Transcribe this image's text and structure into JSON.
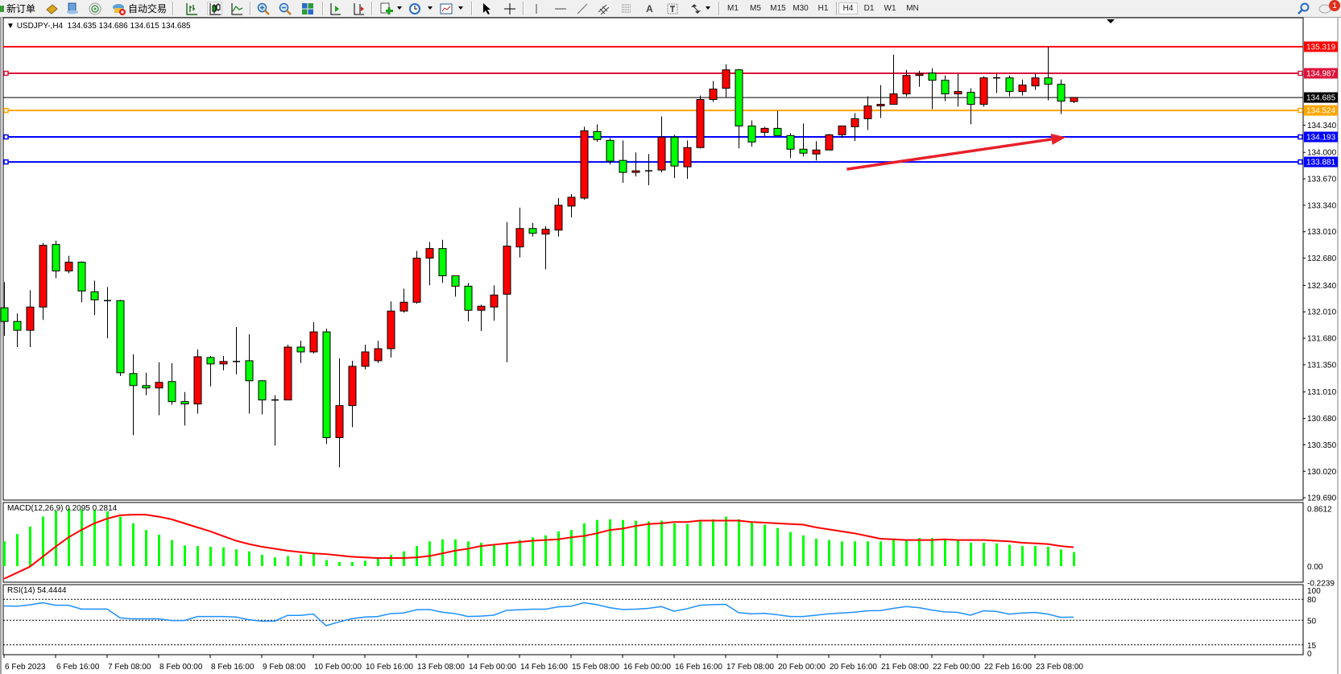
{
  "toolbar": {
    "new_order": "新订单",
    "auto_trading": "自动交易",
    "timeframes": [
      "M1",
      "M5",
      "M15",
      "M30",
      "H1",
      "H4",
      "D1",
      "W1",
      "MN"
    ],
    "active_timeframe": "H4",
    "notification_count": "1",
    "icons": [
      "new-order-icon",
      "history-center-icon",
      "options-icon",
      "signal-icon",
      "auto-trading-icon",
      "bar-chart-icon",
      "candlestick-icon",
      "line-chart-icon",
      "zoom-in-icon",
      "zoom-out-icon",
      "tile-windows-icon",
      "auto-scroll-icon",
      "chart-shift-icon",
      "indicators-icon",
      "periods-icon",
      "templates-icon",
      "cursor-icon",
      "crosshair-icon",
      "vertical-line-icon",
      "horizontal-line-icon",
      "trendline-icon",
      "equidistant-channel-icon",
      "fibonacci-icon",
      "text-icon",
      "text-label-icon",
      "arrows-icon",
      "search-icon",
      "notification-icon"
    ]
  },
  "chart": {
    "header": "USDJPY-,H4  134.635 134.686 134.615 134.685",
    "price_axis_labels": [
      "135.319",
      "134.987",
      "134.685",
      "134.524",
      "134.340",
      "134.193",
      "134.000",
      "133.881",
      "133.670",
      "133.340",
      "133.010",
      "132.680",
      "132.340",
      "132.010",
      "131.680",
      "131.350",
      "131.010",
      "130.680",
      "130.350",
      "130.020",
      "129.690"
    ],
    "macd_header": "MACD(12,26,9) 0.2095 0.2814",
    "macd_axis_labels": [
      "0.8612",
      "0.00",
      "-0.2239"
    ],
    "rsi_header": "RSI(14) 54.4444",
    "rsi_axis_labels": [
      "100",
      "80",
      "50",
      "15",
      "0"
    ],
    "x_tick_labels": [
      "6 Feb 2023",
      "6 Feb 16:00",
      "7 Feb 08:00",
      "8 Feb 00:00",
      "8 Feb 16:00",
      "9 Feb 08:00",
      "10 Feb 00:00",
      "10 Feb 16:00",
      "13 Feb 08:00",
      "14 Feb 00:00",
      "14 Feb 16:00",
      "15 Feb 08:00",
      "16 Feb 00:00",
      "16 Feb 16:00",
      "17 Feb 08:00",
      "20 Feb 00:00",
      "20 Feb 16:00",
      "21 Feb 08:00",
      "22 Feb 00:00",
      "22 Feb 16:00",
      "23 Feb 08:00"
    ]
  },
  "chart_data": [
    {
      "type": "candlestick",
      "symbol": "USDJPY-",
      "timeframe": "H4",
      "last_ohlc": {
        "open": 134.635,
        "high": 134.686,
        "low": 134.615,
        "close": 134.685
      },
      "colors": {
        "up": "#ff0000",
        "down": "#00ff00",
        "outline": "#000000"
      },
      "ylim": [
        129.69,
        135.319
      ],
      "x": [
        "2023.02.06 00:00",
        "2023.02.06 04:00",
        "2023.02.06 08:00",
        "2023.02.06 12:00",
        "2023.02.06 16:00",
        "2023.02.06 20:00",
        "2023.02.07 00:00",
        "2023.02.07 04:00",
        "2023.02.07 08:00",
        "2023.02.07 12:00",
        "2023.02.07 16:00",
        "2023.02.07 20:00",
        "2023.02.08 00:00",
        "2023.02.08 04:00",
        "2023.02.08 08:00",
        "2023.02.08 12:00",
        "2023.02.08 16:00",
        "2023.02.08 20:00",
        "2023.02.09 00:00",
        "2023.02.09 04:00",
        "2023.02.09 08:00",
        "2023.02.09 12:00",
        "2023.02.09 16:00",
        "2023.02.09 20:00",
        "2023.02.10 00:00",
        "2023.02.10 04:00",
        "2023.02.10 08:00",
        "2023.02.10 12:00",
        "2023.02.10 16:00",
        "2023.02.10 20:00",
        "2023.02.13 00:00",
        "2023.02.13 04:00",
        "2023.02.13 08:00",
        "2023.02.13 12:00",
        "2023.02.13 16:00",
        "2023.02.13 20:00",
        "2023.02.14 00:00",
        "2023.02.14 04:00",
        "2023.02.14 08:00",
        "2023.02.14 12:00",
        "2023.02.14 16:00",
        "2023.02.14 20:00",
        "2023.02.15 00:00",
        "2023.02.15 04:00",
        "2023.02.15 08:00",
        "2023.02.15 12:00",
        "2023.02.15 16:00",
        "2023.02.15 20:00",
        "2023.02.16 00:00",
        "2023.02.16 04:00",
        "2023.02.16 08:00",
        "2023.02.16 12:00",
        "2023.02.16 16:00",
        "2023.02.16 20:00",
        "2023.02.17 00:00",
        "2023.02.17 04:00",
        "2023.02.17 08:00",
        "2023.02.17 12:00",
        "2023.02.17 16:00",
        "2023.02.17 20:00",
        "2023.02.20 00:00",
        "2023.02.20 04:00",
        "2023.02.20 08:00",
        "2023.02.20 12:00",
        "2023.02.20 16:00",
        "2023.02.20 20:00",
        "2023.02.21 00:00",
        "2023.02.21 04:00",
        "2023.02.21 08:00",
        "2023.02.21 12:00",
        "2023.02.21 16:00",
        "2023.02.21 20:00",
        "2023.02.22 00:00",
        "2023.02.22 04:00",
        "2023.02.22 08:00",
        "2023.02.22 12:00",
        "2023.02.22 16:00",
        "2023.02.22 20:00",
        "2023.02.23 00:00",
        "2023.02.23 04:00",
        "2023.02.23 08:00",
        "2023.02.23 12:00",
        "2023.02.23 16:00",
        "2023.02.23 20:00"
      ],
      "ohlc": [
        [
          132.06,
          132.38,
          131.71,
          131.89
        ],
        [
          131.89,
          131.99,
          131.57,
          131.78
        ],
        [
          131.78,
          132.28,
          131.57,
          132.07
        ],
        [
          132.07,
          132.87,
          131.91,
          132.84
        ],
        [
          132.85,
          132.9,
          132.43,
          132.52
        ],
        [
          132.52,
          132.71,
          132.49,
          132.63
        ],
        [
          132.63,
          132.64,
          132.13,
          132.27
        ],
        [
          132.26,
          132.4,
          131.97,
          132.16
        ],
        [
          132.15,
          132.32,
          131.68,
          132.15
        ],
        [
          132.15,
          132.16,
          131.21,
          131.25
        ],
        [
          131.24,
          131.48,
          130.47,
          131.09
        ],
        [
          131.09,
          131.25,
          130.97,
          131.06
        ],
        [
          131.06,
          131.38,
          130.72,
          131.13
        ],
        [
          131.14,
          131.37,
          130.85,
          130.89
        ],
        [
          130.89,
          131.01,
          130.59,
          130.86
        ],
        [
          130.86,
          131.54,
          130.74,
          131.45
        ],
        [
          131.44,
          131.46,
          131.08,
          131.36
        ],
        [
          131.36,
          131.46,
          131.28,
          131.39
        ],
        [
          131.39,
          131.82,
          131.23,
          131.38
        ],
        [
          131.4,
          131.73,
          130.74,
          131.15
        ],
        [
          131.15,
          131.16,
          130.73,
          130.91
        ],
        [
          130.91,
          130.97,
          130.34,
          130.9
        ],
        [
          130.91,
          131.6,
          130.91,
          131.57
        ],
        [
          131.57,
          131.65,
          131.37,
          131.51
        ],
        [
          131.51,
          131.88,
          131.49,
          131.76
        ],
        [
          131.76,
          131.8,
          130.36,
          130.44
        ],
        [
          130.44,
          131.43,
          130.07,
          130.84
        ],
        [
          130.84,
          131.4,
          130.57,
          131.33
        ],
        [
          131.33,
          131.6,
          131.29,
          131.51
        ],
        [
          131.4,
          131.65,
          131.37,
          131.55
        ],
        [
          131.55,
          132.14,
          131.44,
          132.02
        ],
        [
          132.02,
          132.3,
          132.0,
          132.13
        ],
        [
          132.13,
          132.77,
          132.11,
          132.68
        ],
        [
          132.68,
          132.88,
          132.34,
          132.8
        ],
        [
          132.8,
          132.91,
          132.37,
          132.46
        ],
        [
          132.46,
          132.46,
          132.2,
          132.33
        ],
        [
          132.33,
          132.37,
          131.89,
          132.03
        ],
        [
          132.03,
          132.1,
          131.77,
          132.08
        ],
        [
          132.07,
          132.34,
          131.9,
          132.22
        ],
        [
          132.23,
          133.13,
          131.38,
          132.83
        ],
        [
          132.82,
          133.31,
          132.69,
          133.05
        ],
        [
          133.05,
          133.12,
          132.95,
          132.99
        ],
        [
          132.98,
          133.08,
          132.54,
          133.04
        ],
        [
          133.03,
          133.43,
          132.95,
          133.34
        ],
        [
          133.33,
          133.48,
          133.19,
          133.44
        ],
        [
          133.43,
          134.32,
          133.41,
          134.27
        ],
        [
          134.26,
          134.35,
          134.13,
          134.16
        ],
        [
          134.15,
          134.18,
          133.85,
          133.89
        ],
        [
          133.9,
          134.15,
          133.62,
          133.75
        ],
        [
          133.75,
          134.0,
          133.7,
          133.77
        ],
        [
          133.77,
          133.98,
          133.59,
          133.77
        ],
        [
          133.78,
          134.45,
          133.75,
          134.19
        ],
        [
          134.19,
          134.22,
          133.68,
          133.83
        ],
        [
          133.82,
          134.15,
          133.67,
          134.06
        ],
        [
          134.06,
          134.71,
          134.05,
          134.66
        ],
        [
          134.66,
          134.89,
          134.63,
          134.79
        ],
        [
          134.8,
          135.1,
          134.69,
          135.03
        ],
        [
          135.03,
          135.04,
          134.05,
          134.33
        ],
        [
          134.33,
          134.4,
          134.07,
          134.13
        ],
        [
          134.25,
          134.32,
          134.2,
          134.3
        ],
        [
          134.3,
          134.52,
          134.21,
          134.21
        ],
        [
          134.21,
          134.24,
          133.93,
          134.04
        ],
        [
          134.04,
          134.36,
          133.95,
          133.99
        ],
        [
          133.98,
          134.14,
          133.9,
          134.03
        ],
        [
          134.03,
          134.23,
          134.03,
          134.22
        ],
        [
          134.22,
          134.33,
          134.18,
          134.33
        ],
        [
          134.32,
          134.49,
          134.14,
          134.42
        ],
        [
          134.42,
          134.7,
          134.28,
          134.58
        ],
        [
          134.58,
          134.84,
          134.43,
          134.6
        ],
        [
          134.6,
          135.22,
          134.6,
          134.73
        ],
        [
          134.73,
          135.03,
          134.7,
          134.96
        ],
        [
          134.96,
          135.02,
          134.82,
          134.98
        ],
        [
          134.99,
          135.05,
          134.54,
          134.9
        ],
        [
          134.9,
          134.96,
          134.64,
          134.73
        ],
        [
          134.73,
          134.98,
          134.57,
          134.76
        ],
        [
          134.75,
          134.8,
          134.35,
          134.6
        ],
        [
          134.6,
          134.95,
          134.57,
          134.93
        ],
        [
          134.93,
          134.98,
          134.74,
          134.93
        ],
        [
          134.93,
          134.96,
          134.7,
          134.76
        ],
        [
          134.76,
          134.91,
          134.71,
          134.84
        ],
        [
          134.83,
          134.98,
          134.78,
          134.93
        ],
        [
          134.93,
          135.32,
          134.65,
          134.85
        ],
        [
          134.85,
          134.91,
          134.48,
          134.64
        ],
        [
          134.635,
          134.686,
          134.615,
          134.685
        ]
      ],
      "horizontal_lines": [
        {
          "price": 135.319,
          "label": "135.319",
          "color": "#ff0000",
          "marker": false
        },
        {
          "price": 134.987,
          "label": "134.987",
          "color": "#dc143c",
          "marker": true
        },
        {
          "price": 134.524,
          "label": "134.524",
          "color": "#ffa500",
          "marker": true
        },
        {
          "price": 134.193,
          "label": "134.193",
          "color": "#0000ff",
          "marker": true
        },
        {
          "price": 133.881,
          "label": "133.881",
          "color": "#0000ff",
          "marker": true
        }
      ],
      "bid_line": {
        "price": 134.685,
        "label": "134.685",
        "color": "#000000"
      },
      "arrow_annotation": {
        "from": {
          "x": "2023.02.20 20:00",
          "price": 133.79
        },
        "to": {
          "x": "2023.02.23 16:00",
          "price": 134.19
        },
        "color": "#e8202a"
      },
      "grid": false
    },
    {
      "type": "bar",
      "indicator": "MACD(12,26,9)",
      "ylim": [
        -0.2239,
        0.8612
      ],
      "series": [
        {
          "name": "MACD",
          "render": "histogram",
          "color": "#00ff00",
          "values": [
            0.37,
            0.48,
            0.59,
            0.74,
            0.83,
            0.86,
            0.85,
            0.84,
            0.82,
            0.74,
            0.64,
            0.54,
            0.47,
            0.39,
            0.31,
            0.3,
            0.29,
            0.28,
            0.25,
            0.22,
            0.17,
            0.13,
            0.15,
            0.17,
            0.19,
            0.09,
            0.06,
            0.06,
            0.08,
            0.11,
            0.17,
            0.22,
            0.3,
            0.37,
            0.4,
            0.4,
            0.37,
            0.35,
            0.33,
            0.34,
            0.39,
            0.43,
            0.46,
            0.52,
            0.54,
            0.64,
            0.69,
            0.7,
            0.69,
            0.68,
            0.67,
            0.68,
            0.64,
            0.63,
            0.67,
            0.7,
            0.74,
            0.7,
            0.65,
            0.62,
            0.57,
            0.51,
            0.46,
            0.41,
            0.39,
            0.37,
            0.37,
            0.37,
            0.37,
            0.39,
            0.39,
            0.42,
            0.42,
            0.39,
            0.39,
            0.35,
            0.35,
            0.34,
            0.32,
            0.3,
            0.3,
            0.29,
            0.25,
            0.2095
          ]
        },
        {
          "name": "Signal",
          "render": "line",
          "color": "#ff0000",
          "values": [
            -0.19,
            -0.1,
            -0.01,
            0.14,
            0.29,
            0.43,
            0.54,
            0.64,
            0.71,
            0.76,
            0.77,
            0.77,
            0.74,
            0.7,
            0.64,
            0.58,
            0.52,
            0.45,
            0.38,
            0.33,
            0.29,
            0.26,
            0.23,
            0.21,
            0.19,
            0.18,
            0.16,
            0.14,
            0.13,
            0.12,
            0.12,
            0.12,
            0.13,
            0.15,
            0.19,
            0.23,
            0.26,
            0.3,
            0.32,
            0.34,
            0.36,
            0.38,
            0.39,
            0.4,
            0.43,
            0.45,
            0.49,
            0.54,
            0.56,
            0.6,
            0.63,
            0.64,
            0.66,
            0.66,
            0.68,
            0.68,
            0.68,
            0.68,
            0.66,
            0.65,
            0.64,
            0.63,
            0.62,
            0.58,
            0.55,
            0.52,
            0.49,
            0.45,
            0.41,
            0.4,
            0.39,
            0.39,
            0.39,
            0.4,
            0.39,
            0.39,
            0.39,
            0.38,
            0.37,
            0.35,
            0.34,
            0.33,
            0.3,
            0.2814
          ]
        }
      ]
    },
    {
      "type": "line",
      "indicator": "RSI(14)",
      "ylim": [
        0,
        100
      ],
      "levels": [
        80,
        50,
        15
      ],
      "color": "#1e90ff",
      "values": [
        70.4,
        70,
        72,
        75,
        71.5,
        71.5,
        66,
        66,
        66,
        53.5,
        52,
        52,
        52,
        49.6,
        49.6,
        55.4,
        55.4,
        55.4,
        54.6,
        50.8,
        48.8,
        48.8,
        57,
        57,
        59,
        42.3,
        47.7,
        52.3,
        54.6,
        55.4,
        59.6,
        60.4,
        65,
        65.4,
        61.5,
        59.6,
        55.4,
        56,
        57.3,
        64.2,
        65,
        65.8,
        65.8,
        69.2,
        70,
        75,
        72.3,
        68,
        65.4,
        65.8,
        67,
        69.6,
        63,
        66.5,
        71.5,
        72.3,
        72.7,
        61,
        59.2,
        60,
        58,
        55.4,
        55.4,
        57.3,
        59.2,
        60.4,
        61.5,
        63.5,
        63.8,
        67,
        69.6,
        68,
        64.6,
        62,
        61.2,
        57.3,
        63.5,
        62.7,
        58.8,
        60.4,
        61.2,
        58.8,
        54.2,
        54.4444
      ]
    }
  ]
}
